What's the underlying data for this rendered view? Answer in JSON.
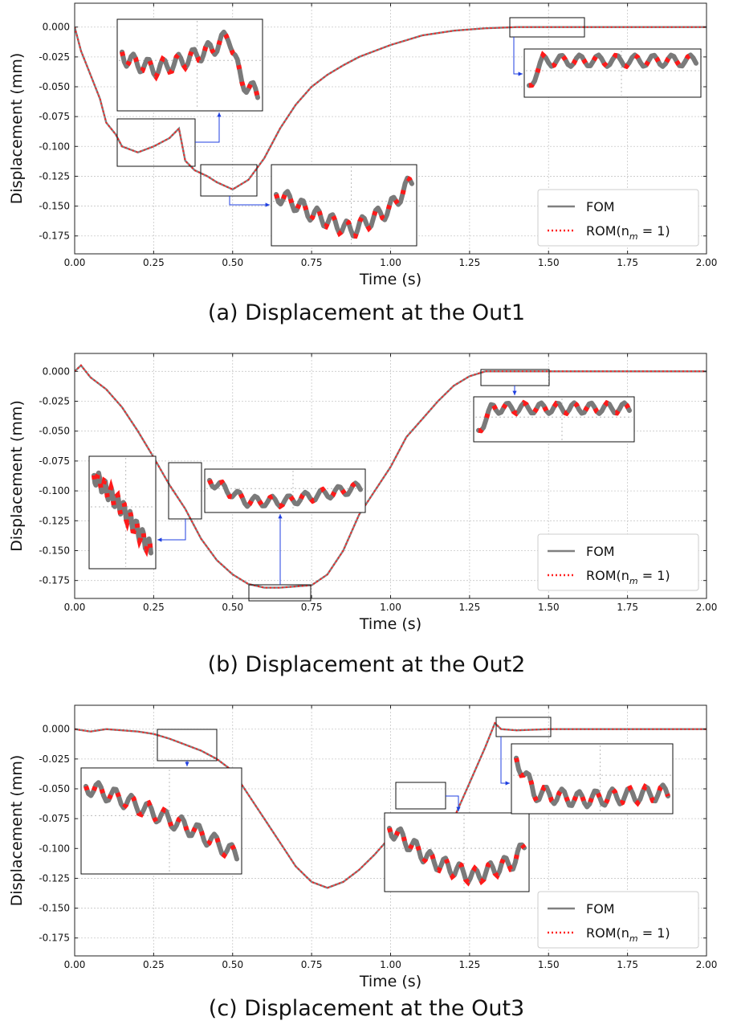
{
  "chart_data": [
    {
      "type": "line",
      "caption": "(a) Displacement at the Out1",
      "xlabel": "Time (s)",
      "ylabel": "Displacement (mm)",
      "xlim": [
        0,
        2
      ],
      "ylim": [
        -0.19,
        0.02
      ],
      "xticks": [
        "0.00",
        "0.25",
        "0.50",
        "0.75",
        "1.00",
        "1.25",
        "1.50",
        "1.75",
        "2.00"
      ],
      "yticks": [
        "0.000",
        "-0.025",
        "-0.050",
        "-0.075",
        "-0.100",
        "-0.125",
        "-0.150",
        "-0.175"
      ],
      "grid": true,
      "legend_position": "lower-right",
      "series": [
        {
          "name": "FOM",
          "color": "#808080",
          "style": "solid"
        },
        {
          "name": "ROM(n_m = 1)",
          "color": "#ff2020",
          "style": "dotted"
        }
      ],
      "x": [
        0.0,
        0.02,
        0.05,
        0.08,
        0.1,
        0.13,
        0.15,
        0.2,
        0.25,
        0.3,
        0.33,
        0.35,
        0.38,
        0.42,
        0.45,
        0.5,
        0.55,
        0.6,
        0.65,
        0.7,
        0.75,
        0.8,
        0.85,
        0.9,
        1.0,
        1.1,
        1.2,
        1.3,
        1.4,
        1.5,
        1.6,
        1.8,
        2.0
      ],
      "values": [
        0.0,
        -0.02,
        -0.04,
        -0.06,
        -0.08,
        -0.09,
        -0.1,
        -0.105,
        -0.1,
        -0.093,
        -0.085,
        -0.112,
        -0.12,
        -0.125,
        -0.13,
        -0.136,
        -0.128,
        -0.11,
        -0.085,
        -0.065,
        -0.05,
        -0.04,
        -0.032,
        -0.025,
        -0.015,
        -0.007,
        -0.003,
        -0.001,
        0.0,
        0.0,
        0.0,
        0.0,
        0.0
      ],
      "insets": [
        {
          "range": [
            0.14,
            0.38
          ]
        },
        {
          "range": [
            0.4,
            0.58
          ]
        },
        {
          "range": [
            1.38,
            1.62
          ]
        }
      ]
    },
    {
      "type": "line",
      "caption": "(b) Displacement at the Out2",
      "xlabel": "Time (s)",
      "ylabel": "Displacement (mm)",
      "xlim": [
        0,
        2
      ],
      "ylim": [
        -0.19,
        0.015
      ],
      "xticks": [
        "0.00",
        "0.25",
        "0.50",
        "0.75",
        "1.00",
        "1.25",
        "1.50",
        "1.75",
        "2.00"
      ],
      "yticks": [
        "0.000",
        "-0.025",
        "-0.050",
        "-0.075",
        "-0.100",
        "-0.125",
        "-0.150",
        "-0.175"
      ],
      "grid": true,
      "legend_position": "lower-right",
      "series": [
        {
          "name": "FOM",
          "color": "#808080",
          "style": "solid"
        },
        {
          "name": "ROM(n_m = 1)",
          "color": "#ff2020",
          "style": "dotted"
        }
      ],
      "x": [
        0.0,
        0.02,
        0.05,
        0.1,
        0.15,
        0.2,
        0.25,
        0.3,
        0.35,
        0.4,
        0.45,
        0.5,
        0.55,
        0.6,
        0.65,
        0.7,
        0.75,
        0.8,
        0.85,
        0.9,
        0.95,
        1.0,
        1.05,
        1.1,
        1.15,
        1.2,
        1.25,
        1.3,
        1.4,
        1.5,
        1.6,
        1.8,
        2.0
      ],
      "values": [
        0.0,
        0.005,
        -0.005,
        -0.015,
        -0.03,
        -0.05,
        -0.072,
        -0.095,
        -0.115,
        -0.14,
        -0.158,
        -0.17,
        -0.178,
        -0.181,
        -0.181,
        -0.18,
        -0.179,
        -0.17,
        -0.15,
        -0.12,
        -0.1,
        -0.08,
        -0.055,
        -0.04,
        -0.025,
        -0.012,
        -0.004,
        0.0,
        0.0,
        0.0,
        0.0,
        0.0,
        0.0
      ],
      "insets": [
        {
          "range": [
            0.3,
            0.4
          ]
        },
        {
          "range": [
            0.55,
            0.75
          ]
        },
        {
          "range": [
            1.28,
            1.5
          ]
        }
      ]
    },
    {
      "type": "line",
      "caption": "(c) Displacement at the Out3",
      "xlabel": "Time (s)",
      "ylabel": "Displacement (mm)",
      "xlim": [
        0,
        2
      ],
      "ylim": [
        -0.19,
        0.02
      ],
      "xticks": [
        "0.00",
        "0.25",
        "0.50",
        "0.75",
        "1.00",
        "1.25",
        "1.50",
        "1.75",
        "2.00"
      ],
      "yticks": [
        "0.000",
        "-0.025",
        "-0.050",
        "-0.075",
        "-0.100",
        "-0.125",
        "-0.150",
        "-0.175"
      ],
      "grid": true,
      "legend_position": "lower-right",
      "series": [
        {
          "name": "FOM",
          "color": "#808080",
          "style": "solid"
        },
        {
          "name": "ROM(n_m = 1)",
          "color": "#ff2020",
          "style": "dotted"
        }
      ],
      "x": [
        0.0,
        0.05,
        0.1,
        0.15,
        0.2,
        0.25,
        0.3,
        0.35,
        0.4,
        0.45,
        0.5,
        0.55,
        0.6,
        0.65,
        0.7,
        0.75,
        0.8,
        0.85,
        0.9,
        0.95,
        1.0,
        1.05,
        1.1,
        1.15,
        1.2,
        1.25,
        1.3,
        1.33,
        1.35,
        1.4,
        1.5,
        1.6,
        1.8,
        2.0
      ],
      "values": [
        0.0,
        -0.002,
        0.0,
        -0.001,
        -0.002,
        -0.004,
        -0.008,
        -0.013,
        -0.018,
        -0.025,
        -0.035,
        -0.055,
        -0.075,
        -0.095,
        -0.115,
        -0.128,
        -0.133,
        -0.128,
        -0.118,
        -0.105,
        -0.09,
        -0.1,
        -0.105,
        -0.1,
        -0.075,
        -0.045,
        -0.015,
        0.005,
        0.0,
        -0.001,
        0.0,
        0.0,
        0.0,
        0.0
      ],
      "insets": [
        {
          "range": [
            0.26,
            0.45
          ]
        },
        {
          "range": [
            1.0,
            1.16
          ]
        },
        {
          "range": [
            1.33,
            1.5
          ]
        }
      ]
    }
  ]
}
